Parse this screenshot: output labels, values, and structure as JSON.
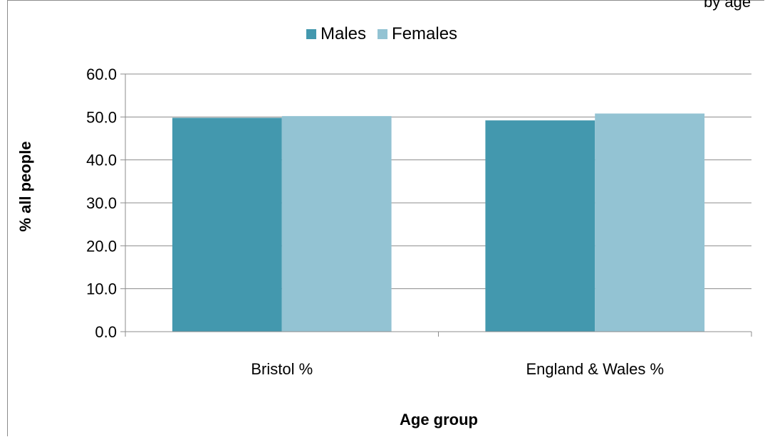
{
  "header": {
    "clipped_title": "by age"
  },
  "legend": {
    "items": [
      {
        "label": "Males",
        "color": "#4398ae"
      },
      {
        "label": "Females",
        "color": "#93c3d3"
      }
    ]
  },
  "chart_data": {
    "type": "bar",
    "title": "",
    "xlabel": "Age group",
    "ylabel": "% all people",
    "categories": [
      "Bristol %",
      "England & Wales %"
    ],
    "series": [
      {
        "name": "Males",
        "values": [
          49.8,
          49.2
        ],
        "color": "#4398ae"
      },
      {
        "name": "Females",
        "values": [
          50.2,
          50.8
        ],
        "color": "#93c3d3"
      }
    ],
    "ylim": [
      0,
      60
    ],
    "yticks": [
      "0.0",
      "10.0",
      "20.0",
      "30.0",
      "40.0",
      "50.0",
      "60.0"
    ],
    "grid": true,
    "legend_position": "top"
  }
}
